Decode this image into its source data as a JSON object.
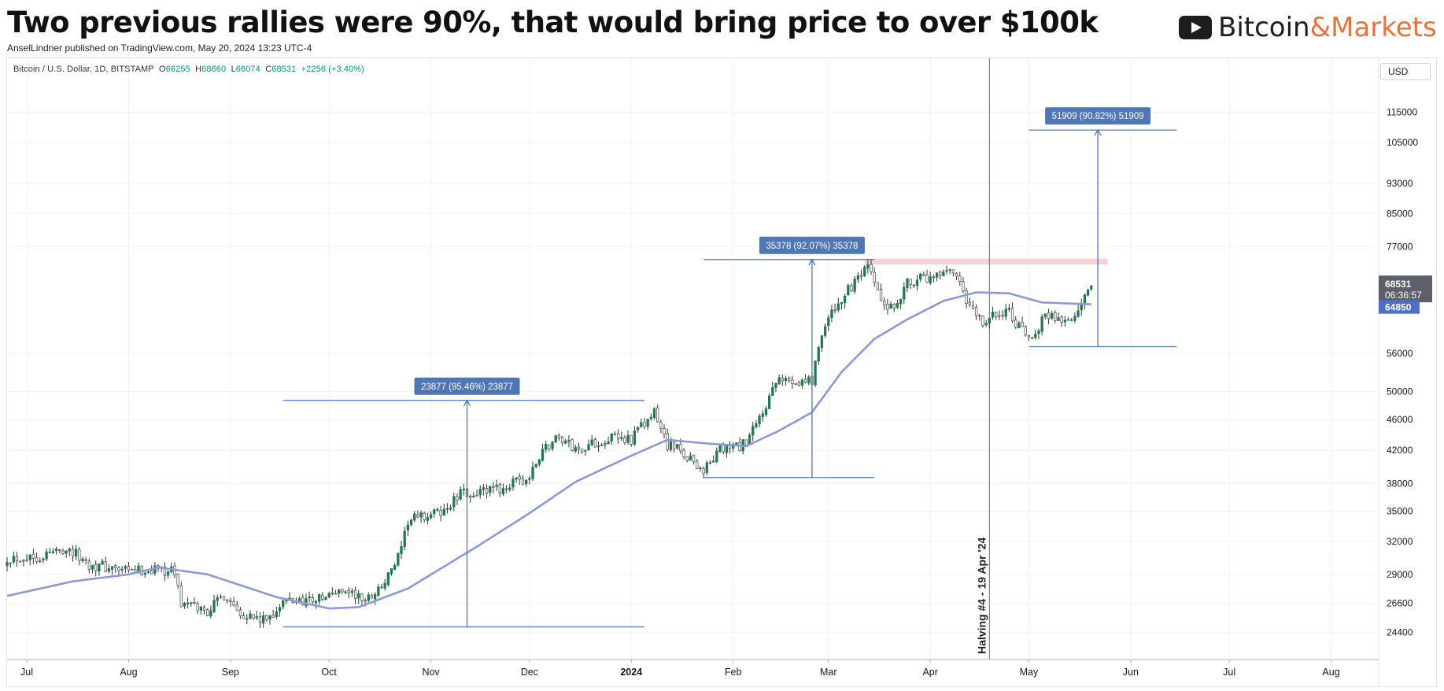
{
  "header": {
    "title": "Two previous rallies were 90%, that would bring price to over $100k",
    "byline": "AnselLindner published on TradingView.com, May 20, 2024 13:23 UTC-4",
    "brand_part1": "Bitcoin",
    "brand_part2": "&Markets"
  },
  "legend": {
    "symbol": "Bitcoin / U.S. Dollar, 1D, BITSTAMP",
    "open_label": "O",
    "open": "66255",
    "high_label": "H",
    "high": "68660",
    "low_label": "L",
    "low": "66074",
    "close_label": "C",
    "close": "68531",
    "change": "+2256 (+3.40%)"
  },
  "axis": {
    "currency": "USD"
  },
  "colors": {
    "up": "#1f7a4d",
    "down": "#ffffff",
    "wick": "#333333",
    "ma": "#8a9ad9",
    "measure": "#4a76c2",
    "label_bg": "#4f76b5",
    "resistance": "#f7c9cd",
    "price_tag": "#5d606b",
    "ma_tag": "#4e6fc7",
    "brand_orange": "#e8733a"
  },
  "chart_data": {
    "type": "candlestick",
    "title": "Two previous rallies were 90%, that would bring price to over $100k",
    "y_scale": "log",
    "ylim": [
      22500,
      135000
    ],
    "xlim": [
      "2023-06-25",
      "2024-08-15"
    ],
    "x_ticks": [
      {
        "date": "2023-07-01",
        "label": "Jul"
      },
      {
        "date": "2023-08-01",
        "label": "Aug"
      },
      {
        "date": "2023-09-01",
        "label": "Sep"
      },
      {
        "date": "2023-10-01",
        "label": "Oct"
      },
      {
        "date": "2023-11-01",
        "label": "Nov"
      },
      {
        "date": "2023-12-01",
        "label": "Dec"
      },
      {
        "date": "2024-01-01",
        "label": "2024",
        "bold": true
      },
      {
        "date": "2024-02-01",
        "label": "Feb"
      },
      {
        "date": "2024-03-01",
        "label": "Mar"
      },
      {
        "date": "2024-04-01",
        "label": "Apr"
      },
      {
        "date": "2024-05-01",
        "label": "May"
      },
      {
        "date": "2024-06-01",
        "label": "Jun"
      },
      {
        "date": "2024-07-01",
        "label": "Jul"
      },
      {
        "date": "2024-08-01",
        "label": "Aug"
      }
    ],
    "y_ticks": [
      24400,
      26600,
      29000,
      32000,
      35000,
      38000,
      42000,
      46000,
      50000,
      56000,
      77000,
      85000,
      93000,
      105000,
      115000
    ],
    "price_anchors": [
      [
        "2023-06-25",
        30500
      ],
      [
        "2023-07-05",
        30600
      ],
      [
        "2023-07-13",
        31400
      ],
      [
        "2023-07-20",
        29900
      ],
      [
        "2023-08-01",
        29200
      ],
      [
        "2023-08-10",
        29500
      ],
      [
        "2023-08-15",
        29200
      ],
      [
        "2023-08-17",
        26600
      ],
      [
        "2023-08-25",
        26000
      ],
      [
        "2023-08-30",
        27300
      ],
      [
        "2023-09-05",
        25800
      ],
      [
        "2023-09-11",
        25200
      ],
      [
        "2023-09-18",
        26800
      ],
      [
        "2023-09-30",
        27000
      ],
      [
        "2023-10-05",
        27800
      ],
      [
        "2023-10-12",
        26800
      ],
      [
        "2023-10-18",
        28300
      ],
      [
        "2023-10-23",
        31000
      ],
      [
        "2023-10-25",
        34000
      ],
      [
        "2023-11-05",
        35000
      ],
      [
        "2023-11-10",
        36800
      ],
      [
        "2023-11-20",
        37200
      ],
      [
        "2023-12-01",
        38600
      ],
      [
        "2023-12-05",
        42000
      ],
      [
        "2023-12-10",
        43800
      ],
      [
        "2023-12-15",
        42000
      ],
      [
        "2023-12-25",
        43500
      ],
      [
        "2024-01-01",
        43500
      ],
      [
        "2024-01-08",
        46800
      ],
      [
        "2024-01-12",
        42800
      ],
      [
        "2024-01-18",
        41300
      ],
      [
        "2024-01-23",
        39500
      ],
      [
        "2024-01-28",
        42000
      ],
      [
        "2024-02-05",
        42700
      ],
      [
        "2024-02-10",
        47000
      ],
      [
        "2024-02-15",
        51800
      ],
      [
        "2024-02-25",
        51700
      ],
      [
        "2024-02-28",
        60000
      ],
      [
        "2024-03-05",
        66000
      ],
      [
        "2024-03-13",
        72000
      ],
      [
        "2024-03-19",
        63000
      ],
      [
        "2024-03-26",
        69900
      ],
      [
        "2024-04-01",
        69700
      ],
      [
        "2024-04-08",
        71200
      ],
      [
        "2024-04-13",
        64000
      ],
      [
        "2024-04-17",
        61300
      ],
      [
        "2024-04-24",
        64000
      ],
      [
        "2024-05-01",
        58000
      ],
      [
        "2024-05-06",
        63000
      ],
      [
        "2024-05-14",
        61500
      ],
      [
        "2024-05-20",
        68531
      ]
    ],
    "ma_anchors": [
      [
        "2023-06-25",
        27200
      ],
      [
        "2023-07-15",
        28400
      ],
      [
        "2023-08-01",
        29000
      ],
      [
        "2023-08-10",
        29600
      ],
      [
        "2023-08-25",
        29000
      ],
      [
        "2023-09-15",
        27100
      ],
      [
        "2023-10-01",
        26200
      ],
      [
        "2023-10-10",
        26300
      ],
      [
        "2023-10-25",
        27800
      ],
      [
        "2023-11-15",
        31500
      ],
      [
        "2023-12-01",
        34800
      ],
      [
        "2023-12-15",
        38200
      ],
      [
        "2024-01-01",
        41300
      ],
      [
        "2024-01-12",
        43300
      ],
      [
        "2024-01-25",
        42800
      ],
      [
        "2024-02-05",
        42500
      ],
      [
        "2024-02-15",
        44500
      ],
      [
        "2024-02-25",
        47000
      ],
      [
        "2024-03-05",
        53000
      ],
      [
        "2024-03-15",
        58500
      ],
      [
        "2024-03-25",
        62000
      ],
      [
        "2024-04-05",
        65500
      ],
      [
        "2024-04-15",
        67200
      ],
      [
        "2024-04-25",
        67000
      ],
      [
        "2024-05-05",
        65200
      ],
      [
        "2024-05-20",
        64850
      ]
    ],
    "measures": [
      {
        "label": "23877 (95.46%) 23877",
        "x_start": "2023-09-17",
        "x_end": "2024-01-05",
        "x_arrow": "2023-11-12",
        "low": 24800,
        "high": 48700
      },
      {
        "label": "35378 (92.07%) 35378",
        "x_start": "2024-01-23",
        "x_end": "2024-03-15",
        "x_arrow": "2024-02-25",
        "low": 38700,
        "high": 74100
      },
      {
        "label": "51909 (90.82%) 51909",
        "x_start": "2024-05-01",
        "x_end": "2024-06-15",
        "x_arrow": "2024-05-22",
        "low": 57150,
        "high": 109000
      }
    ],
    "resistance_zone": {
      "x_start": "2024-03-12",
      "x_end": "2024-05-25",
      "low": 73000,
      "high": 74300
    },
    "vertical_line": {
      "date": "2024-04-19",
      "label": "Halving #4 - 19 Apr '24"
    },
    "last_price": "68531",
    "countdown": "06:36:57",
    "ma_value": "64850"
  }
}
